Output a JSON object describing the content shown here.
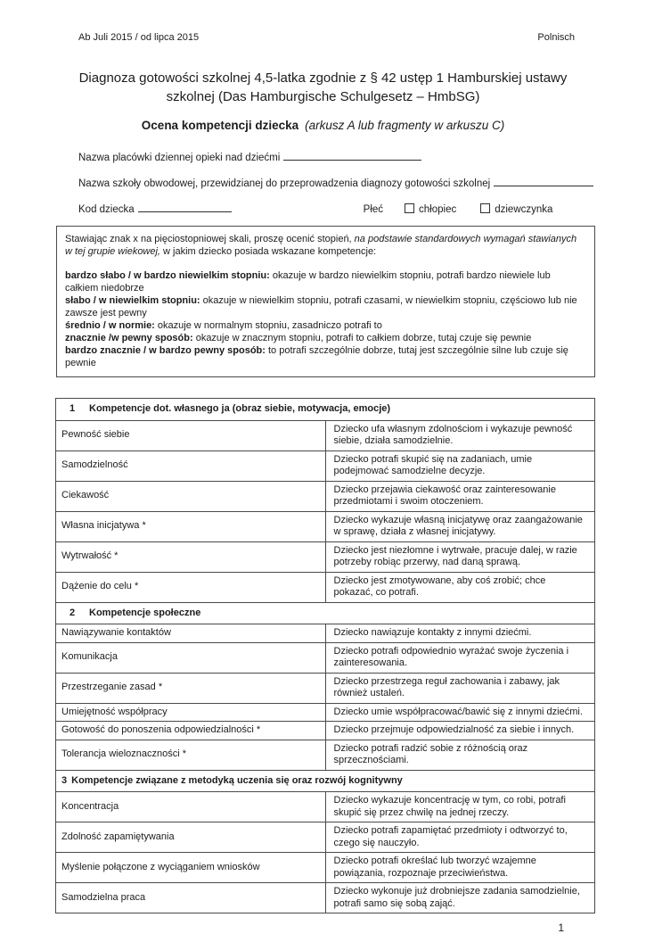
{
  "colors": {
    "paper": "#ffffff",
    "text": "#1c1c1c",
    "rule": "#4a4a4a"
  },
  "page": {
    "edition_note": "Ab Juli 2015 / od lipca 2015",
    "language_label": "Polnisch",
    "page_number": "1"
  },
  "title": {
    "line1": "Diagnoza gotowości szkolnej 4,5-latka zgodnie z § 42 ustęp 1 Hamburskiej ustawy",
    "line2": "szkolnej (Das Hamburgische Schulgesetz – HmbSG)",
    "subtitle_bold": "Ocena kompetencji dziecka",
    "subtitle_italic": "(arkusz A lub fragmenty w arkuszu C)"
  },
  "fields": {
    "daycare_label": "Nazwa placówki dziennej opieki nad dziećmi",
    "school_label": "Nazwa szkoły obwodowej, przewidzianej do przeprowadzenia diagnozy gotowości szkolnej",
    "child_code_label": "Kod dziecka",
    "sex_label": "Płeć",
    "sex_options": [
      "chłopiec",
      "dziewczynka"
    ]
  },
  "scale_box": {
    "intro_normal1": "Stawiając znak x na pięciostopniowej skali, proszę ocenić stopień, ",
    "intro_italic": "na podstawie standardowych wymagań stawianych w tej grupie wiekowej,",
    "intro_normal2": " w jakim dziecko posiada wskazane kompetencje:",
    "levels": [
      {
        "term": "bardzo słabo / w bardzo niewielkim stopniu:",
        "desc": " okazuje w bardzo niewielkim stopniu, potrafi bardzo niewiele lub całkiem niedobrze"
      },
      {
        "term": "słabo / w niewielkim stopniu:",
        "desc": " okazuje w niewielkim stopniu, potrafi czasami, w niewielkim stopniu, częściowo lub nie zawsze jest pewny"
      },
      {
        "term": "średnio / w normie:",
        "desc": " okazuje w normalnym stopniu, zasadniczo potrafi to"
      },
      {
        "term": "znacznie /w pewny sposób:",
        "desc": " okazuje w znacznym stopniu, potrafi to całkiem dobrze, tutaj czuje się pewnie"
      },
      {
        "term": "bardzo znacznie / w bardzo pewny sposób:",
        "desc": " to potrafi szczególnie dobrze, tutaj jest szczególnie silne lub czuje się pewnie"
      }
    ]
  },
  "table": {
    "sections": [
      {
        "number": "1",
        "title": "Kompetencje dot. własnego ja (obraz siebie, motywacja, emocje)",
        "rows": [
          {
            "label": "Pewność siebie",
            "desc": "Dziecko ufa własnym zdolnościom i wykazuje pewność siebie, działa samodzielnie."
          },
          {
            "label": "Samodzielność",
            "desc": "Dziecko potrafi skupić się na zadaniach, umie podejmować samodzielne decyzje."
          },
          {
            "label": "Ciekawość",
            "desc": "Dziecko przejawia ciekawość oraz zainteresowanie przedmiotami i swoim otoczeniem."
          },
          {
            "label": "Własna inicjatywa *",
            "desc": "Dziecko wykazuje własną inicjatywę oraz zaangażowanie w sprawę, działa z własnej inicjatywy."
          },
          {
            "label": "Wytrwałość *",
            "desc": "Dziecko jest niezłomne i wytrwałe, pracuje dalej, w razie potrzeby robiąc przerwy, nad daną sprawą."
          },
          {
            "label": "Dążenie do celu *",
            "desc": "Dziecko jest zmotywowane, aby coś zrobić; chce pokazać, co potrafi."
          }
        ]
      },
      {
        "number": "2",
        "title": "Kompetencje społeczne",
        "rows": [
          {
            "label": "Nawiązywanie kontaktów",
            "desc": "Dziecko nawiązuje kontakty z innymi dziećmi."
          },
          {
            "label": "Komunikacja",
            "desc": "Dziecko potrafi odpowiednio wyrażać swoje życzenia i zainteresowania."
          },
          {
            "label": "Przestrzeganie zasad *",
            "desc": "Dziecko przestrzega reguł zachowania i zabawy, jak również ustaleń."
          },
          {
            "label": "Umiejętność współpracy",
            "desc": "Dziecko umie współpracować/bawić się z innymi dziećmi."
          },
          {
            "label": "Gotowość do ponoszenia odpowiedzialności *",
            "desc": "Dziecko przejmuje odpowiedzialność za siebie i innych."
          },
          {
            "label": "Tolerancja wieloznaczności *",
            "desc": "Dziecko potrafi radzić sobie z różnością oraz sprzecznościami."
          }
        ]
      },
      {
        "number": "3",
        "title": "Kompetencje związane z metodyką uczenia się oraz rozwój kognitywny",
        "rows": [
          {
            "label": "Koncentracja",
            "desc": "Dziecko wykazuje koncentrację w tym, co robi, potrafi skupić się przez chwilę na jednej rzeczy."
          },
          {
            "label": "Zdolność zapamiętywania",
            "desc": "Dziecko potrafi zapamiętać przedmioty i odtworzyć to, czego się nauczyło."
          },
          {
            "label": "Myślenie połączone z wyciąganiem wniosków",
            "desc": "Dziecko potrafi określać lub tworzyć wzajemne powiązania, rozpoznaje przeciwieństwa."
          },
          {
            "label": "Samodzielna praca",
            "desc": "Dziecko wykonuje już drobniejsze zadania samodzielnie, potrafi samo się sobą zająć."
          }
        ]
      }
    ]
  }
}
